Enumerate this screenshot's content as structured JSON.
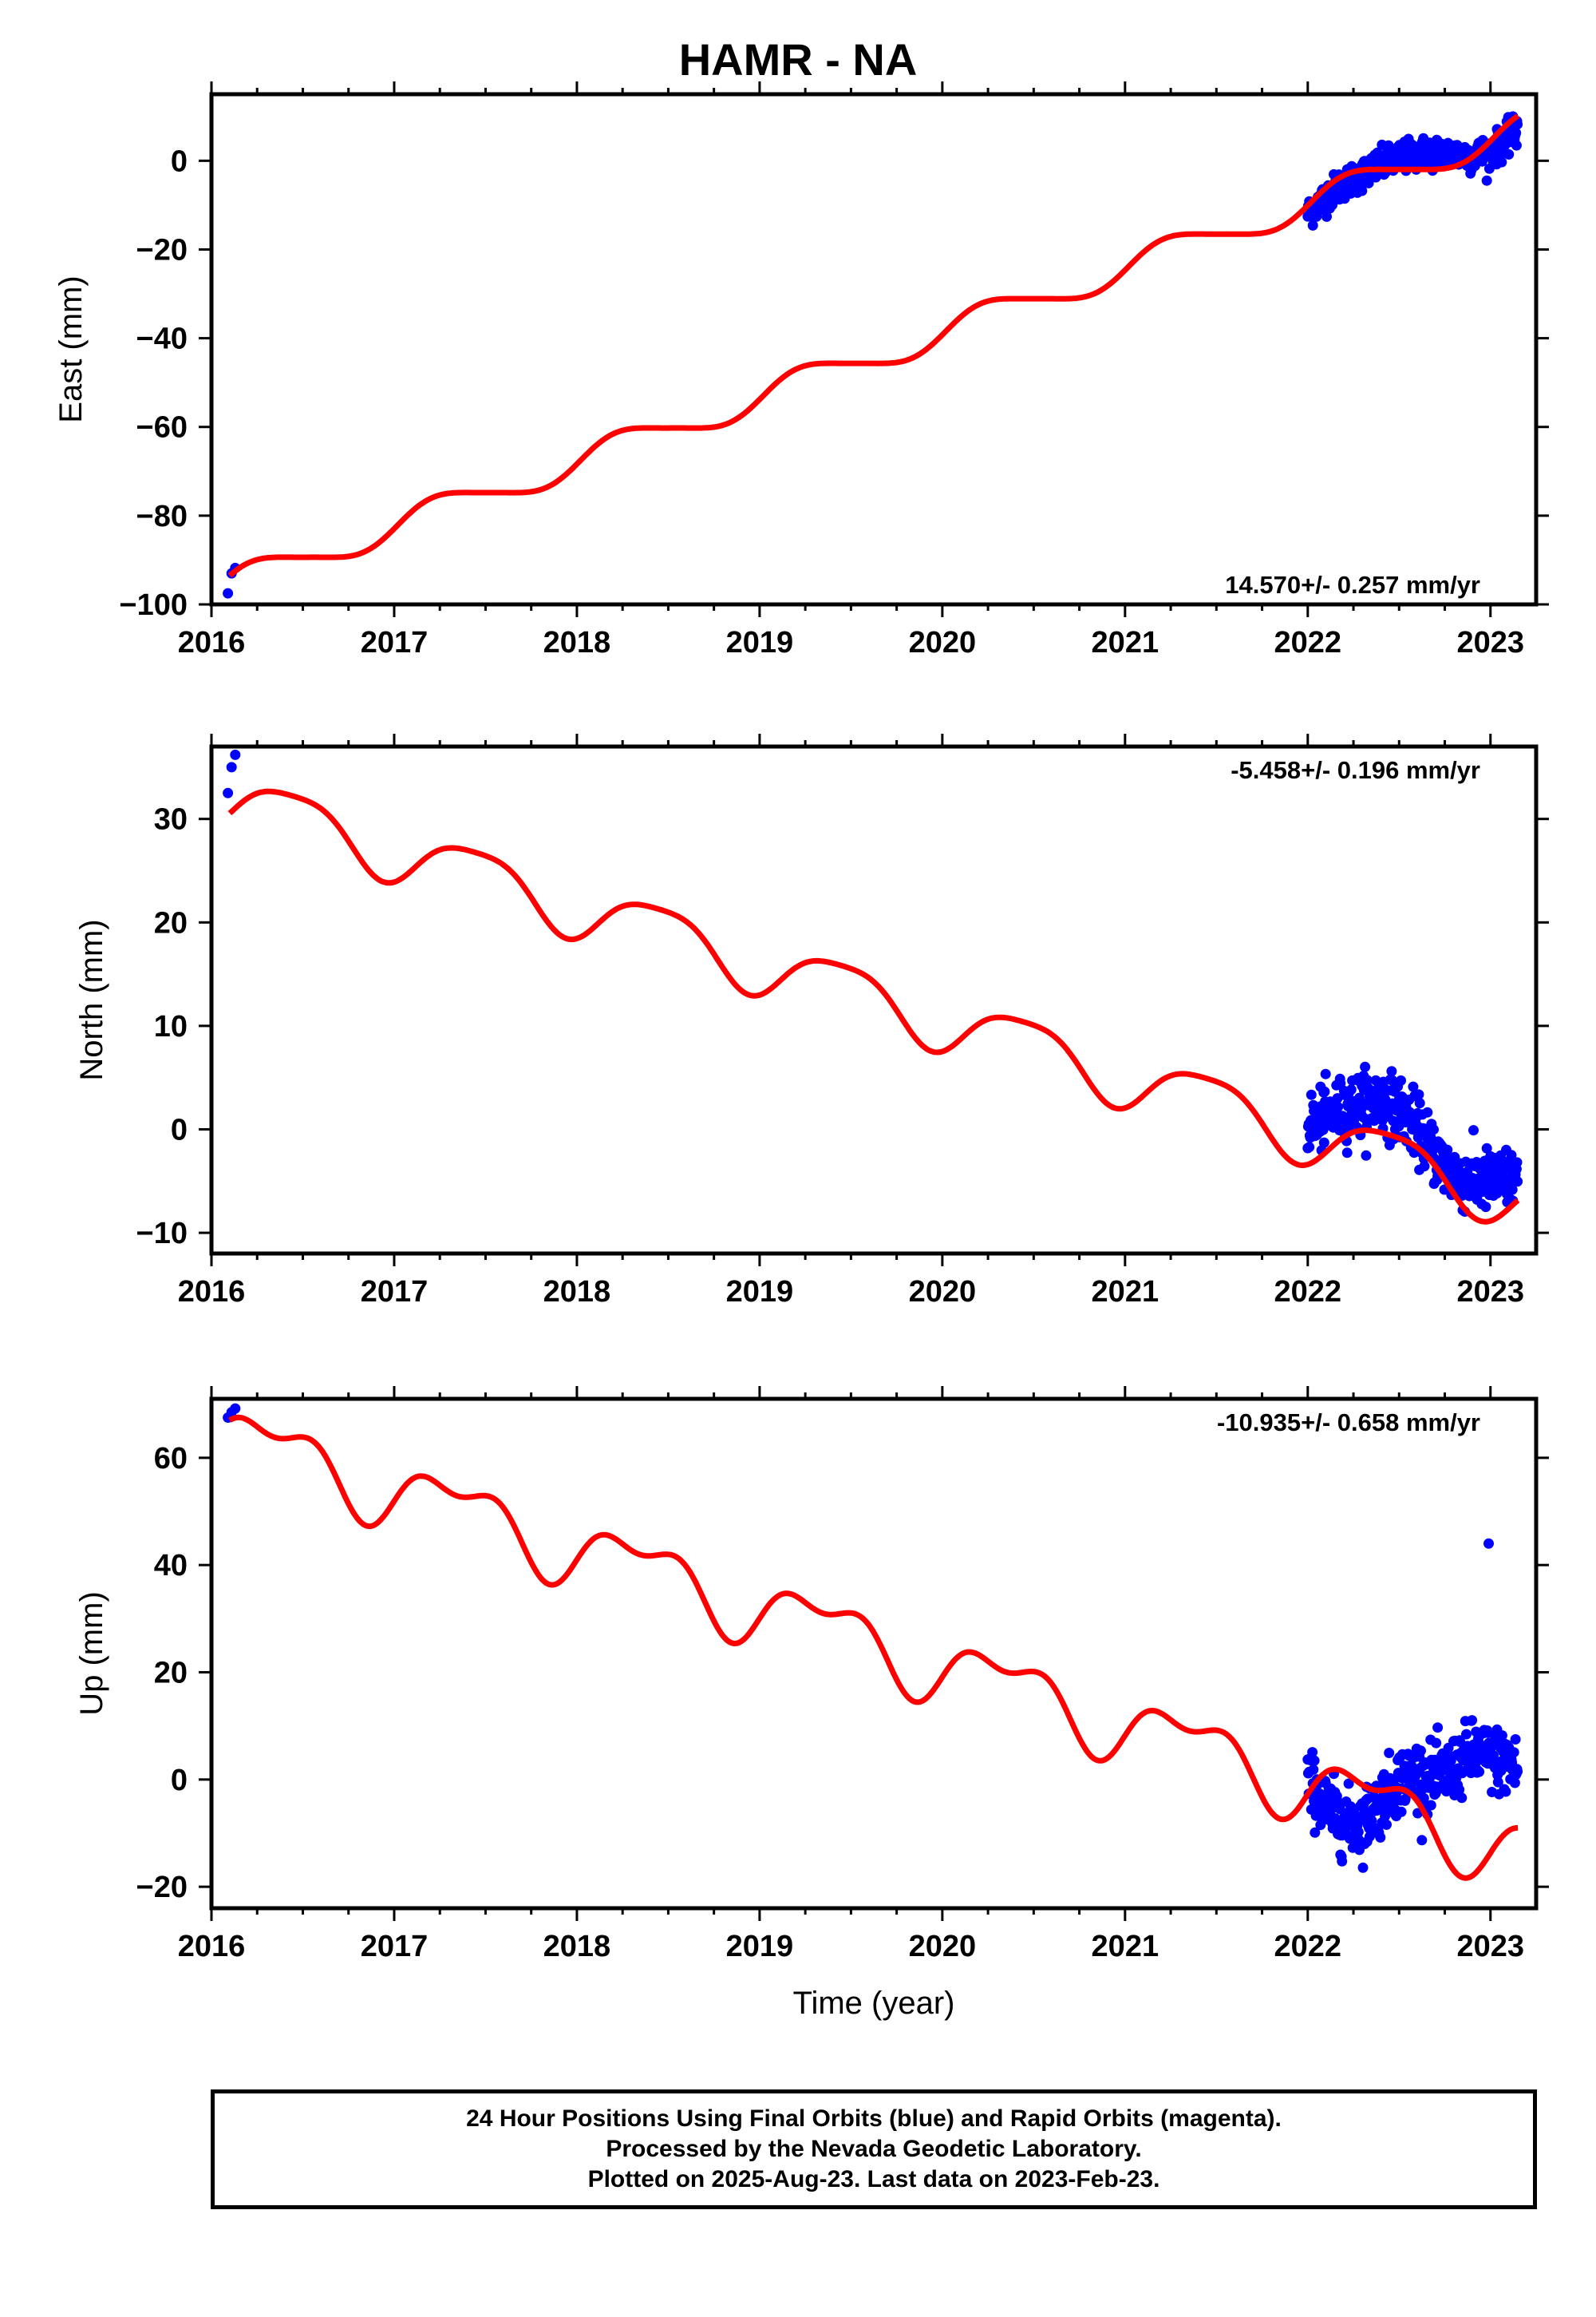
{
  "title": "HAMR - NA",
  "footer": {
    "line1": "24 Hour Positions Using Final Orbits (blue) and Rapid Orbits (magenta).",
    "line2": "Processed by the Nevada Geodetic Laboratory.",
    "line3": "Plotted on 2025-Aug-23. Last data on 2023-Feb-23."
  },
  "colors": {
    "data_points": "#0000ff",
    "model_curve": "#ff0000",
    "frame": "#000000"
  },
  "chart_data": [
    {
      "type": "scatter",
      "ylabel": "East (mm)",
      "xlim": [
        2016.0,
        2023.25
      ],
      "ylim": [
        -100,
        15
      ],
      "yticks": [
        0,
        -20,
        -40,
        -60,
        -80,
        -100
      ],
      "ytick_labels": [
        "0",
        "−20",
        "−40",
        "−60",
        "−80",
        "−100"
      ],
      "xticks": [
        2016,
        2017,
        2018,
        2019,
        2020,
        2021,
        2022,
        2023
      ],
      "xtick_labels": [
        "2016",
        "2017",
        "2018",
        "2019",
        "2020",
        "2021",
        "2022",
        "2023"
      ],
      "annotation": "14.570+/- 0.257 mm/yr",
      "annotation_position": "bottom-right",
      "model": {
        "rate": 14.57,
        "intercept": -95.5,
        "t0": 2016.1,
        "amp1": 3.3,
        "phase1": 0.5,
        "amp2": 0.5,
        "phase2": 1.0
      },
      "points_early": {
        "x": [
          2016.09,
          2016.11,
          2016.13
        ],
        "y": [
          -97.5,
          -93.0,
          -91.8
        ]
      },
      "points_late": {
        "x": [
          2022.0,
          2022.1,
          2022.2,
          2022.3,
          2022.4,
          2022.5,
          2022.6,
          2022.7,
          2022.8,
          2022.9,
          2023.0,
          2023.1,
          2023.15
        ],
        "y": [
          -12,
          -8,
          -5,
          -3,
          -1,
          0.5,
          1.5,
          2,
          1.5,
          1,
          2,
          5,
          7
        ],
        "scatter": 3
      }
    },
    {
      "type": "scatter",
      "ylabel": "North (mm)",
      "xlim": [
        2016.0,
        2023.25
      ],
      "ylim": [
        -12,
        37
      ],
      "yticks": [
        30,
        20,
        10,
        0,
        -10
      ],
      "ytick_labels": [
        "30",
        "20",
        "10",
        "0",
        "−10"
      ],
      "xticks": [
        2016,
        2017,
        2018,
        2019,
        2020,
        2021,
        2022,
        2023
      ],
      "xtick_labels": [
        "2016",
        "2017",
        "2018",
        "2019",
        "2020",
        "2021",
        "2022",
        "2023"
      ],
      "annotation": "-5.458+/- 0.196 mm/yr",
      "annotation_position": "top-right",
      "model": {
        "rate": -5.458,
        "intercept": 31.9,
        "t0": 2016.1,
        "amp1": 2.8,
        "phase1": -0.6,
        "amp2": 0.6,
        "phase2": 0.4
      },
      "points_early": {
        "x": [
          2016.09,
          2016.11,
          2016.13
        ],
        "y": [
          32.5,
          35.0,
          36.2
        ]
      },
      "points_late": {
        "x": [
          2022.0,
          2022.1,
          2022.2,
          2022.3,
          2022.4,
          2022.5,
          2022.6,
          2022.7,
          2022.8,
          2022.9,
          2023.0,
          2023.1,
          2023.15
        ],
        "y": [
          0.5,
          1.2,
          2.0,
          2.5,
          2.8,
          2.0,
          0.2,
          -2.5,
          -4.5,
          -5.0,
          -5.0,
          -4.8,
          -4.5
        ],
        "scatter": 2.5
      }
    },
    {
      "type": "scatter",
      "ylabel": "Up (mm)",
      "xlabel": "Time (year)",
      "xlim": [
        2016.0,
        2023.25
      ],
      "ylim": [
        -24,
        71
      ],
      "yticks": [
        60,
        40,
        20,
        0,
        -20
      ],
      "ytick_labels": [
        "60",
        "40",
        "20",
        "0",
        "−20"
      ],
      "xticks": [
        2016,
        2017,
        2018,
        2019,
        2020,
        2021,
        2022,
        2023
      ],
      "xtick_labels": [
        "2016",
        "2017",
        "2018",
        "2019",
        "2020",
        "2021",
        "2022",
        "2023"
      ],
      "annotation": "-10.935+/- 0.658 mm/yr",
      "annotation_position": "top-right",
      "model": {
        "rate": -10.935,
        "intercept": 64,
        "t0": 2016.1,
        "amp1": 5.5,
        "phase1": 0.0,
        "amp2": 3.0,
        "phase2": 1.6
      },
      "points_early": {
        "x": [
          2016.09,
          2016.11,
          2016.13
        ],
        "y": [
          67.5,
          68.5,
          69.2
        ]
      },
      "points_late": {
        "x": [
          2022.0,
          2022.1,
          2022.2,
          2022.3,
          2022.4,
          2022.5,
          2022.6,
          2022.7,
          2022.8,
          2022.9,
          2023.0,
          2023.1,
          2023.15
        ],
        "y": [
          0,
          -5,
          -8,
          -8,
          -4,
          0,
          1,
          0,
          2,
          5,
          4,
          3,
          2
        ],
        "scatter": 5
      },
      "outliers": {
        "x": [
          2022.99
        ],
        "y": [
          44
        ]
      }
    }
  ]
}
